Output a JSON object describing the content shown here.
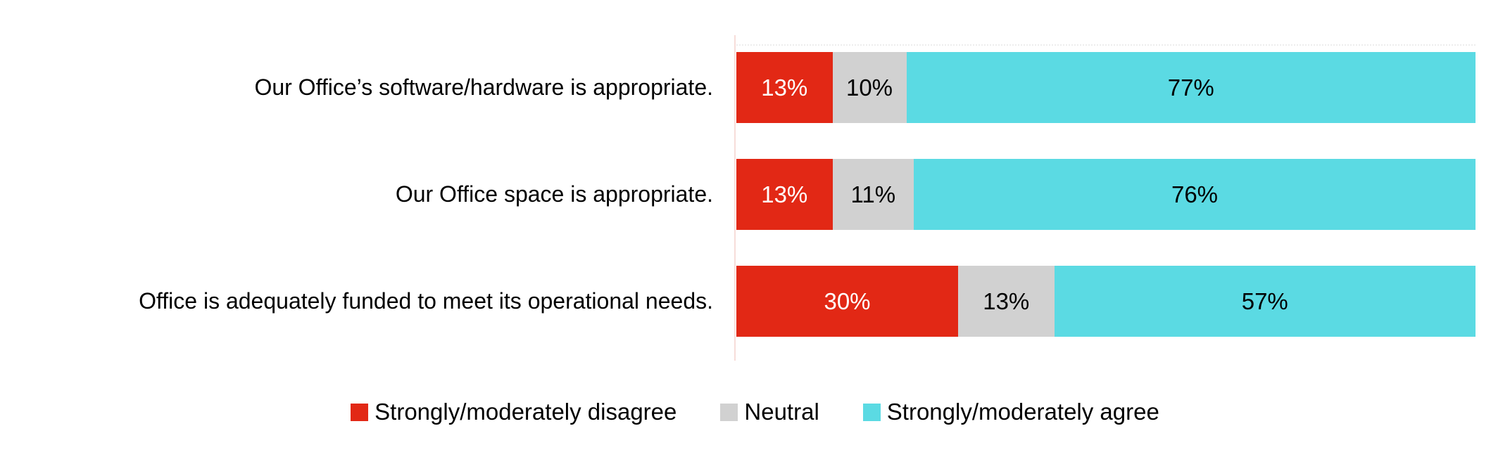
{
  "chart_data": {
    "type": "bar",
    "orientation": "horizontal_stacked",
    "title": "",
    "xlabel": "",
    "ylabel": "",
    "xlim": [
      0,
      100
    ],
    "grid": false,
    "legend_position": "bottom",
    "categories": [
      "Our Office’s software/hardware is appropriate.",
      "Our Office space is appropriate.",
      "Office is adequately funded to meet its operational needs."
    ],
    "series": [
      {
        "name": "Strongly/moderately disagree",
        "color": "#e22815",
        "values": [
          13,
          13,
          30
        ]
      },
      {
        "name": "Neutral",
        "color": "#d1d1d1",
        "values": [
          10,
          11,
          13
        ]
      },
      {
        "name": "Strongly/moderately agree",
        "color": "#5bdae3",
        "values": [
          77,
          76,
          57
        ]
      }
    ],
    "data_labels": [
      [
        "13%",
        "10%",
        "77%"
      ],
      [
        "13%",
        "11%",
        "76%"
      ],
      [
        "30%",
        "13%",
        "57%"
      ]
    ]
  },
  "colors": {
    "axis_line": "#f7ddd9",
    "background": "#ffffff",
    "label_text": "#000000",
    "value_label_on_disagree": "#ffffff",
    "value_label_on_other": "#000000"
  }
}
